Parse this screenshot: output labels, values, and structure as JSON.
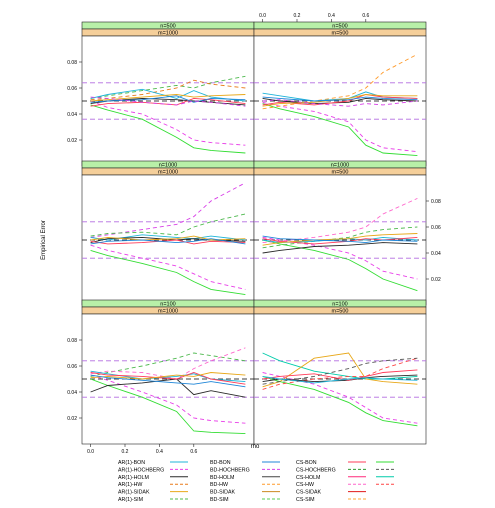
{
  "chart_data": {
    "type": "line",
    "ylabel": "Empirical Error",
    "xlabel": "rho",
    "x": [
      0.0,
      0.1,
      0.3,
      0.5,
      0.6,
      0.7,
      0.9
    ],
    "xlim": [
      -0.05,
      0.95
    ],
    "ylim": [
      0.0,
      0.1
    ],
    "x_ticks": [
      "0.0",
      "0.2",
      "0.4",
      "0.6"
    ],
    "x_tick_values": [
      0.0,
      0.2,
      0.4,
      0.6
    ],
    "y_ticks": [
      "0.02",
      "0.04",
      "0.06",
      "0.08"
    ],
    "y_tick_values": [
      0.02,
      0.04,
      0.06,
      0.08
    ],
    "reference_lines": [
      {
        "y": 0.05,
        "style": "dashed",
        "color": "#000000"
      },
      {
        "y": 0.036,
        "style": "dashed",
        "color": "#b26be0"
      },
      {
        "y": 0.064,
        "style": "dashed",
        "color": "#b26be0"
      }
    ],
    "legend": [
      {
        "name": "AR(1)-BON",
        "color": "#1fb4d8",
        "dash": "solid"
      },
      {
        "name": "AR(1)-HOCHBERG",
        "color": "#e83ee8",
        "dash": "dashed"
      },
      {
        "name": "AR(1)-HOLM",
        "color": "#2a2a2a",
        "dash": "solid"
      },
      {
        "name": "AR(1)-HW",
        "color": "#e87a1a",
        "dash": "dashed"
      },
      {
        "name": "AR(1)-SIDAK",
        "color": "#e8a81a",
        "dash": "solid"
      },
      {
        "name": "AR(1)-SIM",
        "color": "#4cb84c",
        "dash": "dashed"
      },
      {
        "name": "BD-BON",
        "color": "#1f86d8",
        "dash": "solid"
      },
      {
        "name": "BD-HOCHBERG",
        "color": "#d83ee8",
        "dash": "dashed"
      },
      {
        "name": "BD-HOLM",
        "color": "#444444",
        "dash": "solid"
      },
      {
        "name": "BD-HW",
        "color": "#ff9a2a",
        "dash": "dashed"
      },
      {
        "name": "BD-SIDAK",
        "color": "#cc8820",
        "dash": "solid"
      },
      {
        "name": "BD-SIM",
        "color": "#55cc55",
        "dash": "dashed"
      },
      {
        "name": "CS-BON",
        "color": "#ff3c5a",
        "dash": "solid"
      },
      {
        "name": "CS-HOCHBERG",
        "color": "#2e9a2e",
        "dash": "dashed"
      },
      {
        "name": "CS-HOLM",
        "color": "#ff2a7a",
        "dash": "solid"
      },
      {
        "name": "CS-HW",
        "color": "#ff66cc",
        "dash": "dashed"
      },
      {
        "name": "CS-SIDAK",
        "color": "#e01a1a",
        "dash": "solid"
      },
      {
        "name": "CS-SIM",
        "color": "#ffaa33",
        "dash": "dashed"
      },
      {
        "name": "",
        "color": "#33dd33",
        "dash": "solid"
      },
      {
        "name": "",
        "color": "#555555",
        "dash": "dashed"
      },
      {
        "name": "",
        "color": "#00ccaa",
        "dash": "solid"
      },
      {
        "name": "",
        "color": "#ff4444",
        "dash": "dashed"
      }
    ],
    "panels": [
      {
        "strip_n": "n=500",
        "strip_m": "m=1000",
        "series": [
          {
            "color": "#33dd33",
            "dash": "solid",
            "values": [
              0.047,
              0.043,
              0.036,
              0.022,
              0.014,
              0.012,
              0.01
            ]
          },
          {
            "color": "#e83ee8",
            "dash": "dashed",
            "values": [
              0.05,
              0.045,
              0.04,
              0.028,
              0.02,
              0.018,
              0.016
            ]
          },
          {
            "color": "#4cb84c",
            "dash": "dashed",
            "values": [
              0.052,
              0.054,
              0.058,
              0.062,
              0.06,
              0.064,
              0.069
            ]
          },
          {
            "color": "#e87a1a",
            "dash": "dashed",
            "values": [
              0.051,
              0.052,
              0.055,
              0.06,
              0.066,
              0.063,
              0.06
            ]
          },
          {
            "color": "#1fb4d8",
            "dash": "solid",
            "values": [
              0.052,
              0.055,
              0.059,
              0.052,
              0.058,
              0.053,
              0.05
            ]
          },
          {
            "color": "#2a2a2a",
            "dash": "solid",
            "values": [
              0.048,
              0.05,
              0.052,
              0.051,
              0.05,
              0.049,
              0.047
            ]
          },
          {
            "color": "#ff3c5a",
            "dash": "solid",
            "values": [
              0.046,
              0.048,
              0.049,
              0.047,
              0.052,
              0.051,
              0.048
            ]
          },
          {
            "color": "#e8a81a",
            "dash": "solid",
            "values": [
              0.05,
              0.051,
              0.053,
              0.055,
              0.053,
              0.054,
              0.055
            ]
          },
          {
            "color": "#1f86d8",
            "dash": "solid",
            "values": [
              0.049,
              0.05,
              0.051,
              0.054,
              0.049,
              0.052,
              0.051
            ]
          },
          {
            "color": "#d83ee8",
            "dash": "dashed",
            "values": [
              0.053,
              0.052,
              0.049,
              0.047,
              0.05,
              0.049,
              0.046
            ]
          }
        ]
      },
      {
        "strip_n": "n=500",
        "strip_m": "m=500",
        "series": [
          {
            "color": "#33dd33",
            "dash": "solid",
            "values": [
              0.048,
              0.044,
              0.038,
              0.03,
              0.016,
              0.01,
              0.008
            ]
          },
          {
            "color": "#e83ee8",
            "dash": "dashed",
            "values": [
              0.049,
              0.046,
              0.042,
              0.034,
              0.02,
              0.014,
              0.011
            ]
          },
          {
            "color": "#ff9a2a",
            "dash": "dashed",
            "values": [
              0.044,
              0.046,
              0.05,
              0.054,
              0.06,
              0.072,
              0.086
            ]
          },
          {
            "color": "#1fb4d8",
            "dash": "solid",
            "values": [
              0.056,
              0.054,
              0.05,
              0.052,
              0.057,
              0.053,
              0.052
            ]
          },
          {
            "color": "#2a2a2a",
            "dash": "solid",
            "values": [
              0.052,
              0.05,
              0.048,
              0.049,
              0.052,
              0.051,
              0.05
            ]
          },
          {
            "color": "#ff3c5a",
            "dash": "solid",
            "values": [
              0.047,
              0.049,
              0.047,
              0.05,
              0.055,
              0.053,
              0.052
            ]
          },
          {
            "color": "#e8a81a",
            "dash": "solid",
            "values": [
              0.046,
              0.048,
              0.049,
              0.052,
              0.055,
              0.054,
              0.054
            ]
          },
          {
            "color": "#d83ee8",
            "dash": "dashed",
            "values": [
              0.05,
              0.051,
              0.048,
              0.046,
              0.048,
              0.047,
              0.05
            ]
          },
          {
            "color": "#1f86d8",
            "dash": "solid",
            "values": [
              0.053,
              0.052,
              0.05,
              0.051,
              0.053,
              0.052,
              0.051
            ]
          }
        ]
      },
      {
        "strip_n": "n=1000",
        "strip_m": "m=1000",
        "series": [
          {
            "color": "#33dd33",
            "dash": "solid",
            "values": [
              0.042,
              0.038,
              0.032,
              0.025,
              0.018,
              0.012,
              0.008
            ]
          },
          {
            "color": "#e83ee8",
            "dash": "dashed",
            "values": [
              0.046,
              0.042,
              0.036,
              0.03,
              0.024,
              0.018,
              0.012
            ]
          },
          {
            "color": "#d83ee8",
            "dash": "dashed",
            "values": [
              0.052,
              0.054,
              0.058,
              0.062,
              0.068,
              0.08,
              0.094
            ]
          },
          {
            "color": "#4cb84c",
            "dash": "dashed",
            "values": [
              0.053,
              0.055,
              0.056,
              0.054,
              0.06,
              0.064,
              0.07
            ]
          },
          {
            "color": "#1fb4d8",
            "dash": "solid",
            "values": [
              0.052,
              0.05,
              0.054,
              0.052,
              0.051,
              0.053,
              0.05
            ]
          },
          {
            "color": "#2a2a2a",
            "dash": "solid",
            "values": [
              0.048,
              0.051,
              0.052,
              0.05,
              0.051,
              0.05,
              0.049
            ]
          },
          {
            "color": "#ff3c5a",
            "dash": "solid",
            "values": [
              0.049,
              0.047,
              0.048,
              0.05,
              0.047,
              0.049,
              0.048
            ]
          },
          {
            "color": "#e8a81a",
            "dash": "solid",
            "values": [
              0.05,
              0.052,
              0.05,
              0.051,
              0.053,
              0.05,
              0.051
            ]
          },
          {
            "color": "#1f86d8",
            "dash": "solid",
            "values": [
              0.047,
              0.049,
              0.05,
              0.048,
              0.049,
              0.051,
              0.047
            ]
          }
        ]
      },
      {
        "strip_n": "n=1000",
        "strip_m": "m=500",
        "series": [
          {
            "color": "#33dd33",
            "dash": "solid",
            "values": [
              0.05,
              0.047,
              0.042,
              0.035,
              0.028,
              0.02,
              0.011
            ]
          },
          {
            "color": "#e83ee8",
            "dash": "dashed",
            "values": [
              0.052,
              0.05,
              0.046,
              0.04,
              0.034,
              0.026,
              0.02
            ]
          },
          {
            "color": "#ff66cc",
            "dash": "dashed",
            "values": [
              0.048,
              0.049,
              0.052,
              0.056,
              0.06,
              0.07,
              0.082
            ]
          },
          {
            "color": "#4cb84c",
            "dash": "dashed",
            "values": [
              0.044,
              0.046,
              0.049,
              0.052,
              0.056,
              0.058,
              0.06
            ]
          },
          {
            "color": "#1fb4d8",
            "dash": "solid",
            "values": [
              0.05,
              0.048,
              0.049,
              0.051,
              0.05,
              0.052,
              0.05
            ]
          },
          {
            "color": "#2a2a2a",
            "dash": "solid",
            "values": [
              0.04,
              0.042,
              0.045,
              0.046,
              0.047,
              0.048,
              0.047
            ]
          },
          {
            "color": "#ff3c5a",
            "dash": "solid",
            "values": [
              0.051,
              0.049,
              0.047,
              0.049,
              0.051,
              0.05,
              0.052
            ]
          },
          {
            "color": "#e8a81a",
            "dash": "solid",
            "values": [
              0.046,
              0.048,
              0.05,
              0.051,
              0.053,
              0.054,
              0.055
            ]
          },
          {
            "color": "#1f86d8",
            "dash": "solid",
            "values": [
              0.053,
              0.051,
              0.05,
              0.049,
              0.048,
              0.05,
              0.049
            ]
          }
        ]
      },
      {
        "strip_n": "n=100",
        "strip_m": "m=1000",
        "series": [
          {
            "color": "#33dd33",
            "dash": "solid",
            "values": [
              0.05,
              0.045,
              0.036,
              0.025,
              0.01,
              0.009,
              0.008
            ]
          },
          {
            "color": "#e83ee8",
            "dash": "dashed",
            "values": [
              0.053,
              0.049,
              0.04,
              0.03,
              0.02,
              0.018,
              0.016
            ]
          },
          {
            "color": "#4cb84c",
            "dash": "dashed",
            "values": [
              0.052,
              0.055,
              0.06,
              0.066,
              0.07,
              0.068,
              0.064
            ]
          },
          {
            "color": "#ff66cc",
            "dash": "dashed",
            "values": [
              0.054,
              0.056,
              0.055,
              0.05,
              0.058,
              0.064,
              0.074
            ]
          },
          {
            "color": "#2a2a2a",
            "dash": "solid",
            "values": [
              0.04,
              0.045,
              0.047,
              0.05,
              0.038,
              0.041,
              0.036
            ]
          },
          {
            "color": "#1fb4d8",
            "dash": "solid",
            "values": [
              0.056,
              0.054,
              0.05,
              0.052,
              0.054,
              0.05,
              0.048
            ]
          },
          {
            "color": "#ff3c5a",
            "dash": "solid",
            "values": [
              0.055,
              0.053,
              0.052,
              0.05,
              0.055,
              0.05,
              0.046
            ]
          },
          {
            "color": "#e8a81a",
            "dash": "solid",
            "values": [
              0.051,
              0.052,
              0.05,
              0.053,
              0.052,
              0.055,
              0.053
            ]
          },
          {
            "color": "#1f86d8",
            "dash": "solid",
            "values": [
              0.053,
              0.051,
              0.049,
              0.047,
              0.046,
              0.048,
              0.044
            ]
          }
        ]
      },
      {
        "strip_n": "n=100",
        "strip_m": "m=500",
        "series": [
          {
            "color": "#33dd33",
            "dash": "solid",
            "values": [
              0.052,
              0.048,
              0.042,
              0.032,
              0.024,
              0.018,
              0.014
            ]
          },
          {
            "color": "#e83ee8",
            "dash": "dashed",
            "values": [
              0.055,
              0.052,
              0.046,
              0.036,
              0.028,
              0.02,
              0.016
            ]
          },
          {
            "color": "#00ccaa",
            "dash": "solid",
            "values": [
              0.07,
              0.064,
              0.056,
              0.052,
              0.05,
              0.05,
              0.052
            ]
          },
          {
            "color": "#e8a81a",
            "dash": "solid",
            "values": [
              0.044,
              0.048,
              0.066,
              0.07,
              0.05,
              0.048,
              0.046
            ]
          },
          {
            "color": "#ff4444",
            "dash": "dashed",
            "values": [
              0.042,
              0.046,
              0.05,
              0.052,
              0.052,
              0.058,
              0.066
            ]
          },
          {
            "color": "#2a2a2a",
            "dash": "solid",
            "values": [
              0.048,
              0.05,
              0.048,
              0.049,
              0.051,
              0.052,
              0.053
            ]
          },
          {
            "color": "#ff3c5a",
            "dash": "solid",
            "values": [
              0.05,
              0.052,
              0.054,
              0.049,
              0.052,
              0.055,
              0.057
            ]
          },
          {
            "color": "#1fb4d8",
            "dash": "solid",
            "values": [
              0.052,
              0.05,
              0.047,
              0.05,
              0.051,
              0.05,
              0.049
            ]
          },
          {
            "color": "#555555",
            "dash": "dashed",
            "values": [
              0.046,
              0.048,
              0.052,
              0.058,
              0.062,
              0.064,
              0.066
            ]
          }
        ]
      }
    ]
  }
}
